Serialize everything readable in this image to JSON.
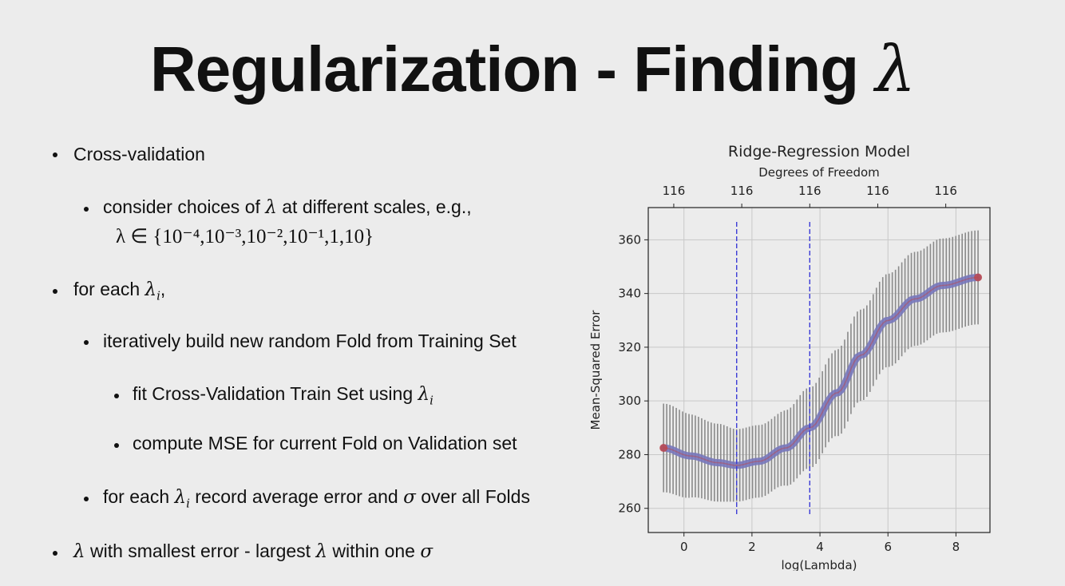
{
  "slide": {
    "title_text": "Regularization - Finding",
    "title_symbol": "λ",
    "bullets": {
      "b1": "Cross-validation",
      "b2_pre": "consider choices of",
      "b2_sym": "λ",
      "b2_post": "at different scales, e.g.,",
      "b2_set": "λ ∈ {10⁻⁴,10⁻³,10⁻²,10⁻¹,1,10}",
      "b3_pre": "for each",
      "b3_sym": "λ",
      "b3_sub": "i",
      "b3_post": ",",
      "b4": "iteratively build new  random Fold from Training Set",
      "b5_pre": "fit Cross-Validation Train Set using",
      "b5_sym": "λ",
      "b5_sub": "i",
      "b6": "compute MSE for current Fold on Validation set",
      "b7_pre": "for each",
      "b7_sym": "λ",
      "b7_sub": "i",
      "b7_mid": "record average error and",
      "b7_sigma": "σ",
      "b7_post": "over all Folds",
      "b8_sym1": "λ",
      "b8_mid": "with smallest error - largest",
      "b8_sym2": "λ",
      "b8_mid2": "within one",
      "b8_sigma": "σ"
    }
  },
  "chart_data": {
    "type": "line",
    "title": "Ridge-Regression Model",
    "top_axis_label": "Degrees of Freedom",
    "top_ticks": [
      {
        "x": -0.3,
        "label": "116"
      },
      {
        "x": 1.7,
        "label": "116"
      },
      {
        "x": 3.7,
        "label": "116"
      },
      {
        "x": 5.7,
        "label": "116"
      },
      {
        "x": 7.7,
        "label": "116"
      }
    ],
    "xlabel": "log(Lambda)",
    "ylabel": "Mean-Squared Error",
    "xlim": [
      -1.05,
      9.0
    ],
    "ylim": [
      251,
      372
    ],
    "x_ticks": [
      0,
      2,
      4,
      6,
      8
    ],
    "y_ticks": [
      260,
      280,
      300,
      320,
      340,
      360
    ],
    "grid": true,
    "vlines": [
      1.55,
      3.7
    ],
    "x_range": [
      -0.6,
      8.65
    ],
    "num_points": 100,
    "series": [
      {
        "mean": [
          [
            -0.6,
            282.5
          ],
          [
            0.2,
            279.5
          ],
          [
            1.0,
            277
          ],
          [
            1.55,
            276
          ],
          [
            2.2,
            277.5
          ],
          [
            3.0,
            282.5
          ],
          [
            3.7,
            290
          ],
          [
            4.5,
            303
          ],
          [
            5.2,
            317
          ],
          [
            6.0,
            330
          ],
          [
            6.8,
            338
          ],
          [
            7.6,
            343
          ],
          [
            8.65,
            346
          ]
        ],
        "std": [
          [
            -0.6,
            16.5
          ],
          [
            1.0,
            14.5
          ],
          [
            1.55,
            13.5
          ],
          [
            2.5,
            13.5
          ],
          [
            3.7,
            15
          ],
          [
            5.2,
            17
          ],
          [
            6.5,
            17.5
          ],
          [
            8.65,
            17.5
          ]
        ]
      }
    ],
    "colors": {
      "errorbar": "#8a8a8a",
      "line": "#7777bb",
      "points": "#c44040",
      "vline": "#3b3bd6",
      "grid": "#c8c8c8"
    }
  }
}
